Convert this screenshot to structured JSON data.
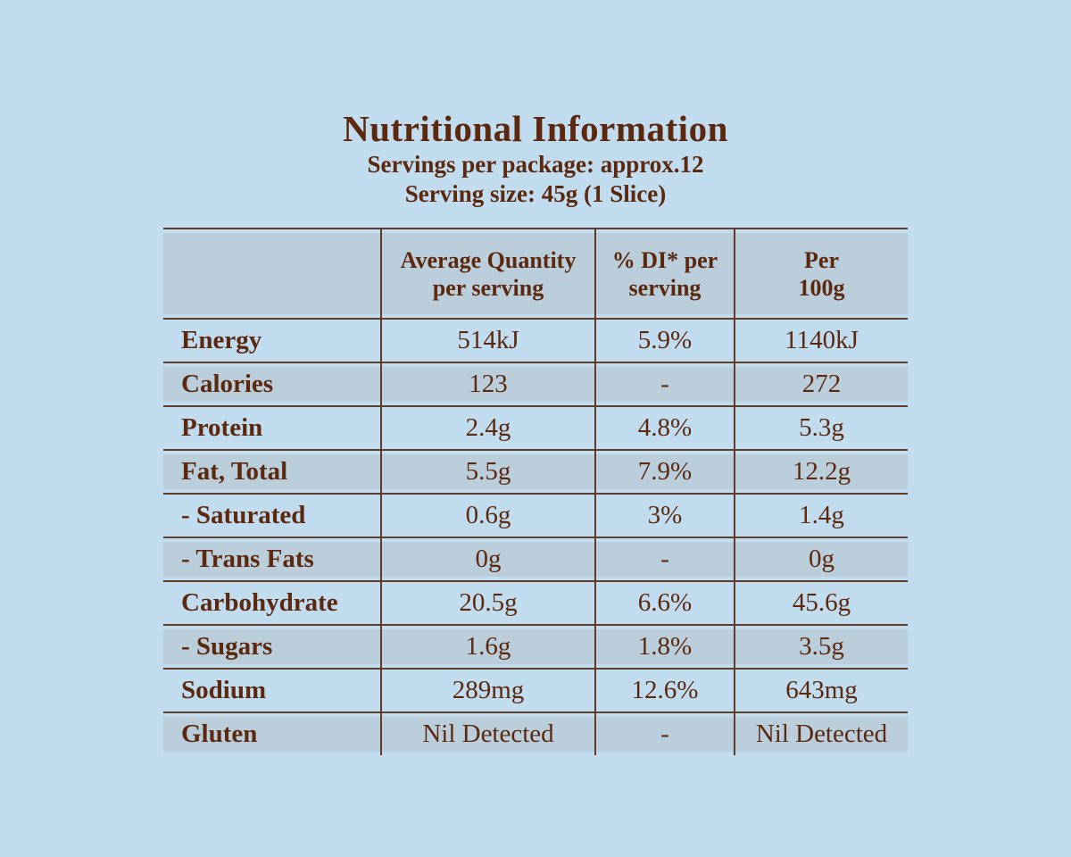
{
  "header": {
    "title": "Nutritional Information",
    "servings_per_package": "Servings per package: approx.12",
    "serving_size": "Serving size: 45g (1 Slice)"
  },
  "table": {
    "columns": [
      "",
      "Average Quantity\nper serving",
      "% DI* per\nserving",
      "Per\n100g"
    ],
    "rows": [
      {
        "label": "Energy",
        "per_serving": "514kJ",
        "di_per_serving": "5.9%",
        "per_100g": "1140kJ"
      },
      {
        "label": "Calories",
        "per_serving": "123",
        "di_per_serving": "-",
        "per_100g": "272"
      },
      {
        "label": "Protein",
        "per_serving": "2.4g",
        "di_per_serving": "4.8%",
        "per_100g": "5.3g"
      },
      {
        "label": "Fat, Total",
        "per_serving": "5.5g",
        "di_per_serving": "7.9%",
        "per_100g": "12.2g"
      },
      {
        "label": "- Saturated",
        "per_serving": "0.6g",
        "di_per_serving": "3%",
        "per_100g": "1.4g"
      },
      {
        "label": "- Trans Fats",
        "per_serving": "0g",
        "di_per_serving": "-",
        "per_100g": "0g"
      },
      {
        "label": "Carbohydrate",
        "per_serving": "20.5g",
        "di_per_serving": "6.6%",
        "per_100g": "45.6g"
      },
      {
        "label": "- Sugars",
        "per_serving": "1.6g",
        "di_per_serving": "1.8%",
        "per_100g": "3.5g"
      },
      {
        "label": "Sodium",
        "per_serving": "289mg",
        "di_per_serving": "12.6%",
        "per_100g": "643mg"
      },
      {
        "label": "Gluten",
        "per_serving": "Nil Detected",
        "di_per_serving": "-",
        "per_100g": "Nil Detected"
      }
    ]
  },
  "colors": {
    "background": "#c0dcee",
    "row_stripe": "#bacddb",
    "text": "#5c290f",
    "line": "#5f3d28"
  }
}
